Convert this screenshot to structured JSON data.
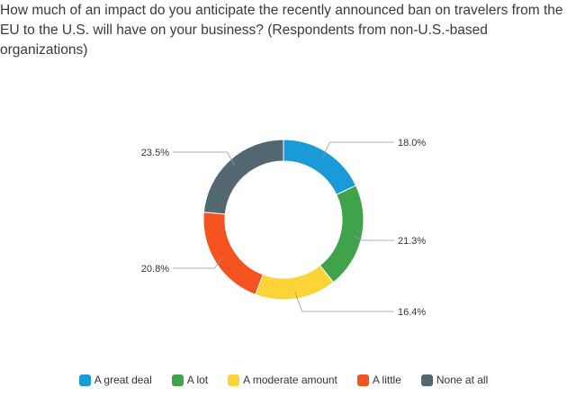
{
  "chart_data": {
    "type": "pie",
    "variant": "donut",
    "title": "How much of an impact do you anticipate the recently announced ban on travelers from the EU to the U.S. will have on your business? (Respondents from non-U.S.-based organizations)",
    "categories": [
      "A great deal",
      "A lot",
      "A moderate amount",
      "A little",
      "None at all"
    ],
    "values": [
      18.0,
      21.3,
      16.4,
      20.8,
      23.5
    ],
    "value_labels": [
      "18.0%",
      "21.3%",
      "16.4%",
      "20.8%",
      "23.5%"
    ],
    "colors": [
      "#1a9ad6",
      "#40a24a",
      "#fdd437",
      "#f4521f",
      "#52676f"
    ],
    "legend_position": "bottom",
    "start_angle": "top, clockwise"
  }
}
